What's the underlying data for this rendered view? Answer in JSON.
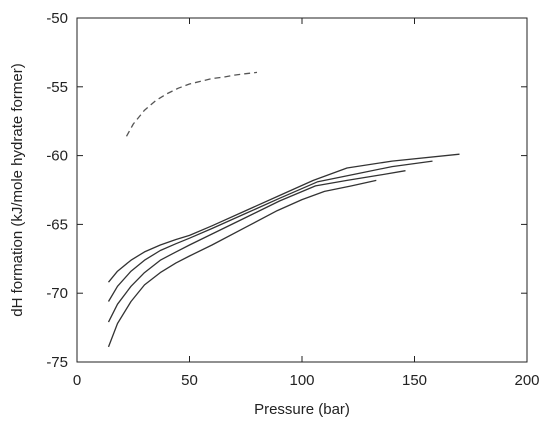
{
  "chart_data": {
    "type": "line",
    "title": "",
    "xlabel": "Pressure (bar)",
    "ylabel": "dH formation (kJ/mole hydrate former)",
    "xlim": [
      0,
      200
    ],
    "ylim": [
      -75,
      -50
    ],
    "xticks": [
      0,
      50,
      100,
      150,
      200
    ],
    "yticks": [
      -50,
      -55,
      -60,
      -65,
      -70,
      -75
    ],
    "grid": false,
    "legend": "none",
    "series": [
      {
        "style": "dashed",
        "color": "#555555",
        "x": [
          22,
          25,
          30,
          35,
          40,
          45,
          50,
          55,
          60,
          65,
          70,
          75,
          80
        ],
        "y": [
          -58.6,
          -57.7,
          -56.7,
          -56.0,
          -55.5,
          -55.1,
          -54.8,
          -54.6,
          -54.4,
          -54.3,
          -54.15,
          -54.05,
          -53.95
        ]
      },
      {
        "style": "solid",
        "color": "#333333",
        "x": [
          14,
          18,
          24,
          30,
          37,
          44,
          50,
          60,
          75,
          90,
          105,
          120,
          140,
          170
        ],
        "y": [
          -69.2,
          -68.4,
          -67.6,
          -67.0,
          -66.5,
          -66.1,
          -65.8,
          -65.1,
          -64.0,
          -62.9,
          -61.8,
          -60.9,
          -60.4,
          -59.9
        ]
      },
      {
        "style": "solid",
        "color": "#333333",
        "x": [
          14,
          18,
          24,
          30,
          37,
          44,
          50,
          60,
          75,
          90,
          107,
          125,
          140,
          158
        ],
        "y": [
          -70.6,
          -69.5,
          -68.4,
          -67.6,
          -66.9,
          -66.4,
          -66.0,
          -65.3,
          -64.2,
          -63.1,
          -61.9,
          -61.3,
          -60.8,
          -60.4
        ]
      },
      {
        "style": "solid",
        "color": "#333333",
        "x": [
          14,
          18,
          24,
          30,
          37,
          44,
          50,
          60,
          75,
          90,
          106,
          120,
          135,
          146
        ],
        "y": [
          -72.1,
          -70.8,
          -69.5,
          -68.5,
          -67.6,
          -67.0,
          -66.5,
          -65.7,
          -64.5,
          -63.3,
          -62.2,
          -61.8,
          -61.4,
          -61.1
        ]
      },
      {
        "style": "solid",
        "color": "#333333",
        "x": [
          14,
          18,
          24,
          30,
          37,
          44,
          50,
          60,
          75,
          89,
          100,
          110,
          122,
          133
        ],
        "y": [
          -73.9,
          -72.2,
          -70.6,
          -69.4,
          -68.5,
          -67.8,
          -67.3,
          -66.5,
          -65.2,
          -64.0,
          -63.2,
          -62.6,
          -62.2,
          -61.8
        ]
      }
    ]
  }
}
